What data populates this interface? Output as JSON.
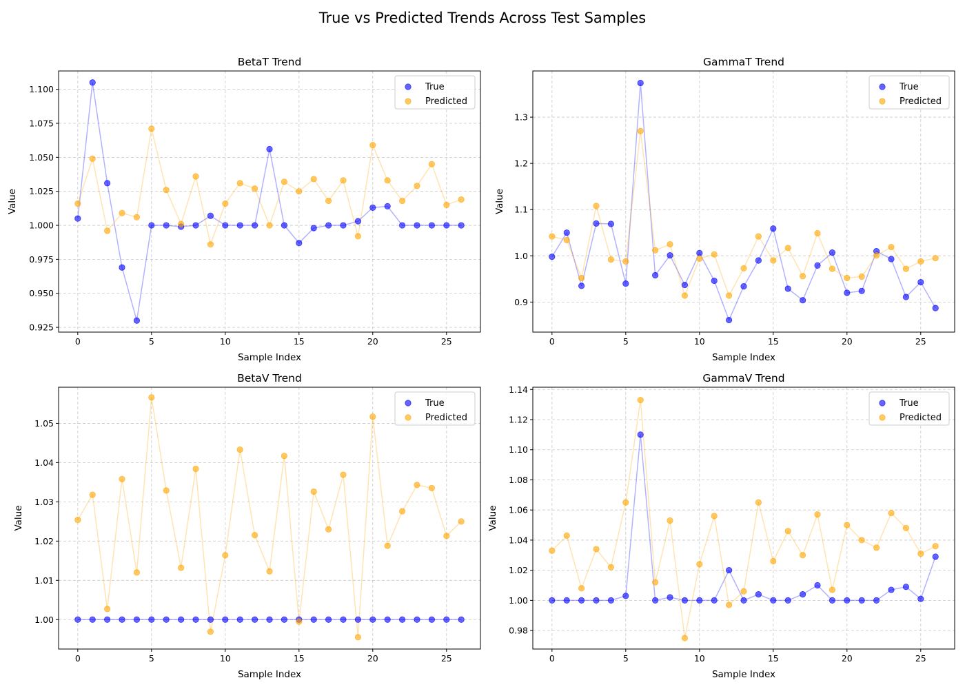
{
  "figure_title": "True vs Predicted Trends Across Test Samples",
  "chart_data": [
    {
      "type": "scatter",
      "title": "BetaT Trend",
      "xlabel": "Sample Index",
      "ylabel": "Value",
      "xlim": [
        -1.3,
        27.3
      ],
      "ylim": [
        0.9215,
        1.1135
      ],
      "xticks": [
        0,
        5,
        10,
        15,
        20,
        25
      ],
      "xtick_labels": [
        "0",
        "5",
        "10",
        "15",
        "20",
        "25"
      ],
      "yticks": [
        0.925,
        0.95,
        0.975,
        1.0,
        1.025,
        1.05,
        1.075,
        1.1
      ],
      "ytick_labels": [
        "0.925",
        "0.950",
        "0.975",
        "1.000",
        "1.025",
        "1.050",
        "1.075",
        "1.100"
      ],
      "grid": true,
      "legend": "upper-right",
      "x": [
        0,
        1,
        2,
        3,
        4,
        5,
        6,
        7,
        8,
        9,
        10,
        11,
        12,
        13,
        14,
        15,
        16,
        17,
        18,
        19,
        20,
        21,
        22,
        23,
        24,
        25,
        26
      ],
      "series": [
        {
          "name": "True",
          "color": "#0000ff",
          "values": [
            1.005,
            1.105,
            1.031,
            0.969,
            0.93,
            1.0,
            1.0,
            0.999,
            1.0,
            1.007,
            1.0,
            1.0,
            1.0,
            1.056,
            1.0,
            0.987,
            0.998,
            1.0,
            1.0,
            1.003,
            1.013,
            1.014,
            1.0,
            1.0,
            1.0,
            1.0,
            1.0
          ]
        },
        {
          "name": "Predicted",
          "color": "#ffa500",
          "values": [
            1.016,
            1.049,
            0.996,
            1.009,
            1.006,
            1.071,
            1.026,
            1.001,
            1.036,
            0.986,
            1.016,
            1.031,
            1.027,
            1.0,
            1.032,
            1.025,
            1.034,
            1.018,
            1.033,
            0.992,
            1.059,
            1.033,
            1.018,
            1.029,
            1.045,
            1.015,
            1.019
          ]
        }
      ]
    },
    {
      "type": "scatter",
      "title": "GammaT Trend",
      "xlabel": "Sample Index",
      "ylabel": "Value",
      "xlim": [
        -1.3,
        27.3
      ],
      "ylim": [
        0.835,
        1.4
      ],
      "xticks": [
        0,
        5,
        10,
        15,
        20,
        25
      ],
      "xtick_labels": [
        "0",
        "5",
        "10",
        "15",
        "20",
        "25"
      ],
      "yticks": [
        0.9,
        1.0,
        1.1,
        1.2,
        1.3
      ],
      "ytick_labels": [
        "0.9",
        "1.0",
        "1.1",
        "1.2",
        "1.3"
      ],
      "grid": true,
      "legend": "upper-right",
      "x": [
        0,
        1,
        2,
        3,
        4,
        5,
        6,
        7,
        8,
        9,
        10,
        11,
        12,
        13,
        14,
        15,
        16,
        17,
        18,
        19,
        20,
        21,
        22,
        23,
        24,
        25,
        26
      ],
      "series": [
        {
          "name": "True",
          "color": "#0000ff",
          "values": [
            0.998,
            1.05,
            0.935,
            1.07,
            1.069,
            0.94,
            1.374,
            0.958,
            1.001,
            0.937,
            1.006,
            0.946,
            0.861,
            0.934,
            0.99,
            1.059,
            0.929,
            0.904,
            0.979,
            1.007,
            0.92,
            0.924,
            1.01,
            0.993,
            0.911,
            0.943,
            0.887
          ]
        },
        {
          "name": "Predicted",
          "color": "#ffa500",
          "values": [
            1.042,
            1.034,
            0.952,
            1.108,
            0.992,
            0.988,
            1.27,
            1.012,
            1.025,
            0.914,
            0.994,
            1.003,
            0.914,
            0.973,
            1.042,
            0.99,
            1.017,
            0.956,
            1.049,
            0.972,
            0.952,
            0.955,
            1.001,
            1.019,
            0.972,
            0.988,
            0.995
          ]
        }
      ]
    },
    {
      "type": "scatter",
      "title": "BetaV Trend",
      "xlabel": "Sample Index",
      "ylabel": "Value",
      "xlim": [
        -1.3,
        27.3
      ],
      "ylim": [
        0.9925,
        1.0592
      ],
      "xticks": [
        0,
        5,
        10,
        15,
        20,
        25
      ],
      "xtick_labels": [
        "0",
        "5",
        "10",
        "15",
        "20",
        "25"
      ],
      "yticks": [
        1.0,
        1.01,
        1.02,
        1.03,
        1.04,
        1.05
      ],
      "ytick_labels": [
        "1.00",
        "1.01",
        "1.02",
        "1.03",
        "1.04",
        "1.05"
      ],
      "grid": true,
      "legend": "upper-right",
      "x": [
        0,
        1,
        2,
        3,
        4,
        5,
        6,
        7,
        8,
        9,
        10,
        11,
        12,
        13,
        14,
        15,
        16,
        17,
        18,
        19,
        20,
        21,
        22,
        23,
        24,
        25,
        26
      ],
      "series": [
        {
          "name": "True",
          "color": "#0000ff",
          "values": [
            1.0,
            1.0,
            1.0,
            1.0,
            1.0,
            1.0,
            1.0,
            1.0,
            1.0,
            1.0,
            1.0,
            1.0,
            1.0,
            1.0,
            1.0,
            1.0,
            1.0,
            1.0,
            1.0,
            1.0,
            1.0,
            1.0,
            1.0,
            1.0,
            1.0,
            1.0,
            1.0
          ]
        },
        {
          "name": "Predicted",
          "color": "#ffa500",
          "values": [
            1.0254,
            1.0318,
            1.0027,
            1.0358,
            1.012,
            1.0566,
            1.0329,
            1.0132,
            1.0384,
            0.9969,
            1.0164,
            1.0433,
            1.0215,
            1.0123,
            1.0417,
            0.9995,
            1.0326,
            1.023,
            1.0369,
            0.9955,
            1.0517,
            1.0188,
            1.0276,
            1.0343,
            1.0335,
            1.0213,
            1.025
          ]
        }
      ]
    },
    {
      "type": "scatter",
      "title": "GammaV Trend",
      "xlabel": "Sample Index",
      "ylabel": "Value",
      "xlim": [
        -1.3,
        27.3
      ],
      "ylim": [
        0.9677,
        1.1415
      ],
      "xticks": [
        0,
        5,
        10,
        15,
        20,
        25
      ],
      "xtick_labels": [
        "0",
        "5",
        "10",
        "15",
        "20",
        "25"
      ],
      "yticks": [
        0.98,
        1.0,
        1.02,
        1.04,
        1.06,
        1.08,
        1.1,
        1.12,
        1.14
      ],
      "ytick_labels": [
        "0.98",
        "1.00",
        "1.02",
        "1.04",
        "1.06",
        "1.08",
        "1.10",
        "1.12",
        "1.14"
      ],
      "grid": true,
      "legend": "upper-right",
      "x": [
        0,
        1,
        2,
        3,
        4,
        5,
        6,
        7,
        8,
        9,
        10,
        11,
        12,
        13,
        14,
        15,
        16,
        17,
        18,
        19,
        20,
        21,
        22,
        23,
        24,
        25,
        26
      ],
      "series": [
        {
          "name": "True",
          "color": "#0000ff",
          "values": [
            1.0,
            1.0,
            1.0,
            1.0,
            1.0,
            1.003,
            1.11,
            1.0,
            1.002,
            1.0,
            1.0,
            1.0,
            1.02,
            1.0,
            1.004,
            1.0,
            1.0,
            1.004,
            1.01,
            1.0,
            1.0,
            1.0,
            1.0,
            1.007,
            1.009,
            1.001,
            1.029
          ]
        },
        {
          "name": "Predicted",
          "color": "#ffa500",
          "values": [
            1.033,
            1.043,
            1.008,
            1.034,
            1.022,
            1.065,
            1.133,
            1.012,
            1.053,
            0.975,
            1.024,
            1.056,
            0.997,
            1.006,
            1.065,
            1.026,
            1.046,
            1.03,
            1.057,
            1.007,
            1.05,
            1.04,
            1.035,
            1.058,
            1.048,
            1.031,
            1.036
          ]
        }
      ]
    }
  ]
}
